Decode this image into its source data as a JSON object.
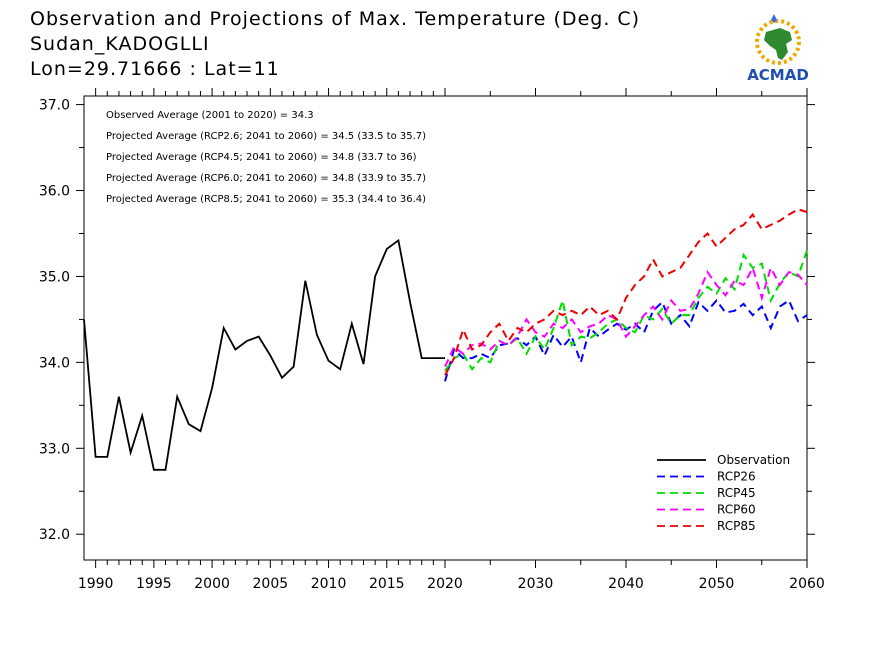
{
  "title": {
    "line1": "Observation and Projections of Max. Temperature (Deg. C)",
    "line2": "Sudan_KADOGLLI",
    "line3": "Lon=29.71666 : Lat=11"
  },
  "logo": {
    "text": "ACMAD",
    "icon": "africa-map-icon"
  },
  "chart_data": {
    "type": "line",
    "xlim": [
      1989,
      2060
    ],
    "ylim": [
      31.7,
      37.1
    ],
    "x_ticks": [
      1990,
      1995,
      2000,
      2005,
      2010,
      2015,
      2020,
      2030,
      2040,
      2050,
      2060
    ],
    "y_ticks": [
      "32.0",
      "33.0",
      "34.0",
      "35.0",
      "36.0",
      "37.0"
    ],
    "annotations": [
      "Observed Average (2001 to 2020) = 34.3",
      "Projected Average (RCP2.6; 2041 to 2060) = 34.5 (33.5 to 35.7)",
      "Projected Average (RCP4.5; 2041 to 2060) = 34.8 (33.7 to 36)",
      "Projected Average (RCP6.0; 2041 to 2060) = 34.8 (33.9 to 35.7)",
      "Projected Average (RCP8.5; 2041 to 2060) = 35.3 (34.4 to 36.4)"
    ],
    "legend_position": "bottom-right",
    "series": [
      {
        "name": "Observation",
        "color": "#000000",
        "dash": false,
        "x": [
          1989,
          1990,
          1991,
          1992,
          1993,
          1994,
          1995,
          1996,
          1997,
          1998,
          1999,
          2000,
          2001,
          2002,
          2003,
          2004,
          2005,
          2006,
          2007,
          2008,
          2009,
          2010,
          2011,
          2012,
          2013,
          2014,
          2015,
          2016,
          2017,
          2018,
          2019,
          2020
        ],
        "y": [
          34.5,
          32.9,
          32.9,
          33.6,
          32.95,
          33.38,
          32.75,
          32.75,
          33.6,
          33.28,
          33.2,
          33.7,
          34.4,
          34.15,
          34.25,
          34.3,
          34.08,
          33.82,
          33.95,
          34.95,
          34.32,
          34.02,
          33.92,
          34.45,
          33.98,
          35.0,
          35.32,
          35.42,
          34.7,
          34.05,
          34.05,
          34.05
        ]
      },
      {
        "name": "RCP26",
        "color": "#0000ff",
        "dash": true,
        "x": [
          2020,
          2021,
          2022,
          2023,
          2024,
          2025,
          2026,
          2027,
          2028,
          2029,
          2030,
          2031,
          2032,
          2033,
          2034,
          2035,
          2036,
          2037,
          2038,
          2039,
          2040,
          2041,
          2042,
          2043,
          2044,
          2045,
          2046,
          2047,
          2048,
          2049,
          2050,
          2051,
          2052,
          2053,
          2054,
          2055,
          2056,
          2057,
          2058,
          2059,
          2060
        ],
        "y": [
          33.78,
          34.15,
          34.05,
          34.05,
          34.1,
          34.05,
          34.2,
          34.22,
          34.28,
          34.2,
          34.3,
          34.08,
          34.32,
          34.18,
          34.3,
          34.0,
          34.4,
          34.3,
          34.38,
          34.45,
          34.38,
          34.45,
          34.35,
          34.6,
          34.7,
          34.45,
          34.55,
          34.42,
          34.7,
          34.6,
          34.72,
          34.58,
          34.6,
          34.68,
          34.55,
          34.65,
          34.4,
          34.65,
          34.72,
          34.48,
          34.55
        ]
      },
      {
        "name": "RCP45",
        "color": "#00dd00",
        "dash": true,
        "x": [
          2020,
          2021,
          2022,
          2023,
          2024,
          2025,
          2026,
          2027,
          2028,
          2029,
          2030,
          2031,
          2032,
          2033,
          2034,
          2035,
          2036,
          2037,
          2038,
          2039,
          2040,
          2041,
          2042,
          2043,
          2044,
          2045,
          2046,
          2047,
          2048,
          2049,
          2050,
          2051,
          2052,
          2053,
          2054,
          2055,
          2056,
          2057,
          2058,
          2059,
          2060
        ],
        "y": [
          33.9,
          34.05,
          34.1,
          33.92,
          34.05,
          34.0,
          34.25,
          34.2,
          34.28,
          34.1,
          34.3,
          34.15,
          34.4,
          34.72,
          34.2,
          34.3,
          34.28,
          34.35,
          34.45,
          34.5,
          34.4,
          34.35,
          34.55,
          34.5,
          34.62,
          34.45,
          34.55,
          34.55,
          34.75,
          34.88,
          34.8,
          34.98,
          34.85,
          35.25,
          35.1,
          35.15,
          34.72,
          34.92,
          35.05,
          35.0,
          35.3
        ]
      },
      {
        "name": "RCP60",
        "color": "#ff00ff",
        "dash": true,
        "x": [
          2020,
          2021,
          2022,
          2023,
          2024,
          2025,
          2026,
          2027,
          2028,
          2029,
          2030,
          2031,
          2032,
          2033,
          2034,
          2035,
          2036,
          2037,
          2038,
          2039,
          2040,
          2041,
          2042,
          2043,
          2044,
          2045,
          2046,
          2047,
          2048,
          2049,
          2050,
          2051,
          2052,
          2053,
          2054,
          2055,
          2056,
          2057,
          2058,
          2059,
          2060
        ],
        "y": [
          33.95,
          34.18,
          34.1,
          34.2,
          34.22,
          34.15,
          34.25,
          34.2,
          34.3,
          34.5,
          34.35,
          34.3,
          34.45,
          34.4,
          34.5,
          34.35,
          34.42,
          34.45,
          34.55,
          34.5,
          34.3,
          34.42,
          34.55,
          34.65,
          34.5,
          34.72,
          34.6,
          34.62,
          34.8,
          35.05,
          34.9,
          34.78,
          34.95,
          34.9,
          35.1,
          34.75,
          35.1,
          34.9,
          35.05,
          35.02,
          34.9
        ]
      },
      {
        "name": "RCP85",
        "color": "#ee0000",
        "dash": true,
        "x": [
          2020,
          2021,
          2022,
          2023,
          2024,
          2025,
          2026,
          2027,
          2028,
          2029,
          2030,
          2031,
          2032,
          2033,
          2034,
          2035,
          2036,
          2037,
          2038,
          2039,
          2040,
          2041,
          2042,
          2043,
          2044,
          2045,
          2046,
          2047,
          2048,
          2049,
          2050,
          2051,
          2052,
          2053,
          2054,
          2055,
          2056,
          2057,
          2058,
          2059,
          2060
        ],
        "y": [
          33.85,
          34.05,
          34.38,
          34.15,
          34.2,
          34.35,
          34.45,
          34.25,
          34.4,
          34.35,
          34.45,
          34.5,
          34.6,
          34.55,
          34.6,
          34.55,
          34.65,
          34.55,
          34.6,
          34.5,
          34.75,
          34.9,
          35.0,
          35.2,
          35.0,
          35.05,
          35.1,
          35.25,
          35.4,
          35.5,
          35.35,
          35.45,
          35.55,
          35.6,
          35.72,
          35.55,
          35.6,
          35.65,
          35.72,
          35.78,
          35.75
        ]
      }
    ]
  }
}
